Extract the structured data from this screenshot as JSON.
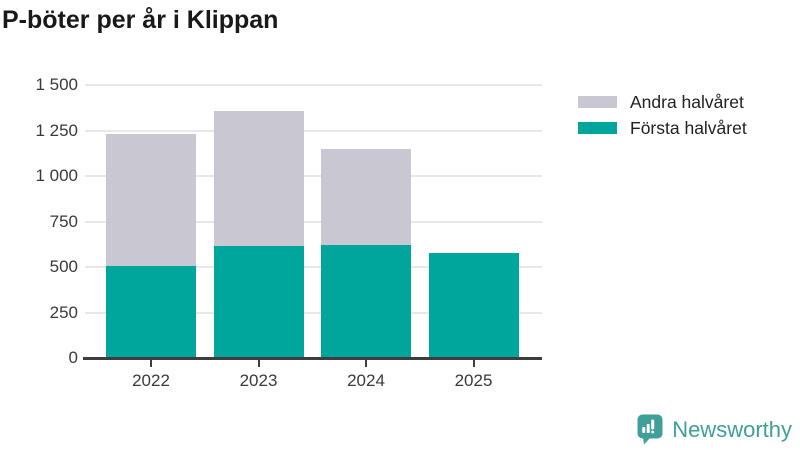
{
  "title": "P-böter per år i Klippan",
  "colors": {
    "first_half": "#00a59b",
    "second_half": "#c9c7d1",
    "grid": "#e8e8ea",
    "axis": "#3d3d3d",
    "axis_text": "#3a3a3a",
    "title_text": "#191919",
    "brand": "#3f9f99"
  },
  "legend": {
    "items": [
      {
        "label": "Andra halvåret",
        "color": "#c9c7d1"
      },
      {
        "label": "Första halvåret",
        "color": "#00a59b"
      }
    ]
  },
  "chart_data": {
    "type": "bar",
    "stacked": true,
    "title": "P-böter per år i Klippan",
    "categories": [
      "2022",
      "2023",
      "2024",
      "2025"
    ],
    "series": [
      {
        "name": "Första halvåret",
        "color": "#00a59b",
        "values": [
          505,
          615,
          620,
          575
        ]
      },
      {
        "name": "Andra halvåret",
        "color": "#c9c7d1",
        "values": [
          725,
          740,
          530,
          0
        ]
      }
    ],
    "totals": [
      1230,
      1355,
      1150,
      575
    ],
    "xlabel": "",
    "ylabel": "",
    "ylim": [
      0,
      1500
    ],
    "yticks": [
      0,
      250,
      500,
      750,
      1000,
      1250,
      1500
    ],
    "ytick_labels": [
      "0",
      "250",
      "500",
      "750",
      "1 000",
      "1 250",
      "1 500"
    ],
    "grid": "horizontal",
    "legend_position": "top-right"
  },
  "branding": {
    "name": "Newsworthy",
    "icon": "newsworthy-speech-bubble-chart-icon"
  }
}
